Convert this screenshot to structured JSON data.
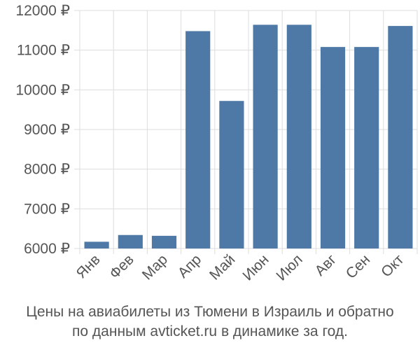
{
  "chart_data": {
    "type": "bar",
    "categories": [
      "Янв",
      "Фев",
      "Мар",
      "Апр",
      "Май",
      "Июн",
      "Июл",
      "Авг",
      "Сен",
      "Окт"
    ],
    "values": [
      6170,
      6340,
      6320,
      11480,
      9720,
      11640,
      11640,
      11080,
      11080,
      11610
    ],
    "ylim": [
      6000,
      12000
    ],
    "yticks": [
      6000,
      7000,
      8000,
      9000,
      10000,
      11000,
      12000
    ],
    "ytick_labels": [
      "6000 ₽",
      "7000 ₽",
      "8000 ₽",
      "9000 ₽",
      "10000 ₽",
      "11000 ₽",
      "12000 ₽"
    ],
    "grid": true,
    "bar_color": "#4e79a7",
    "caption_lines": [
      "Цены на авиабилеты из Тюмени в Израиль и обратно",
      "по данным avticket.ru в динамике за год."
    ]
  }
}
